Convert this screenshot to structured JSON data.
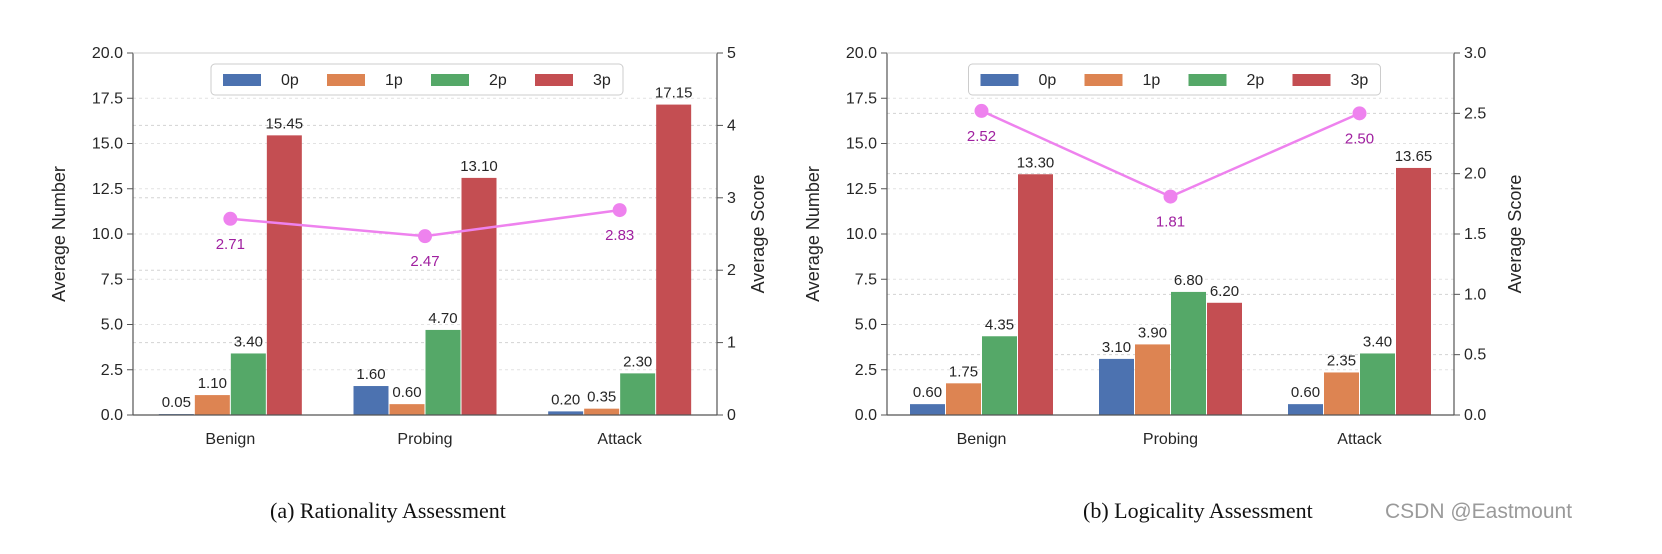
{
  "chart_data": [
    {
      "type": "bar",
      "title": "(a) Rationality Assessment",
      "xlabel": "",
      "ylabel": "Average Number",
      "y2label": "Average Score",
      "ylim": [
        0,
        20
      ],
      "y2lim": [
        0,
        5
      ],
      "yticks": [
        "0.0",
        "2.5",
        "5.0",
        "7.5",
        "10.0",
        "12.5",
        "15.0",
        "17.5",
        "20.0"
      ],
      "y2ticks": [
        "0",
        "1",
        "2",
        "3",
        "4",
        "5"
      ],
      "y2tick_values": [
        0,
        1,
        2,
        3,
        4,
        5
      ],
      "grid": true,
      "legend": "top-center",
      "categories": [
        "Benign",
        "Probing",
        "Attack"
      ],
      "series": [
        {
          "name": "0p",
          "color": "#4c72b0",
          "values": [
            0.05,
            1.6,
            0.2
          ],
          "labels": [
            "0.05",
            "1.60",
            "0.20"
          ]
        },
        {
          "name": "1p",
          "color": "#dd8452",
          "values": [
            1.1,
            0.6,
            0.35
          ],
          "labels": [
            "1.10",
            "0.60",
            "0.35"
          ]
        },
        {
          "name": "2p",
          "color": "#55a868",
          "values": [
            3.4,
            4.7,
            2.3
          ],
          "labels": [
            "3.40",
            "4.70",
            "2.30"
          ]
        },
        {
          "name": "3p",
          "color": "#c44e52",
          "values": [
            15.45,
            13.1,
            17.15
          ],
          "labels": [
            "15.45",
            "13.10",
            "17.15"
          ]
        }
      ],
      "line": {
        "name": "Average Score",
        "color": "#ee82ee",
        "label_color": "#a020a0",
        "values": [
          2.71,
          2.47,
          2.83
        ],
        "labels": [
          "2.71",
          "2.47",
          "2.83"
        ],
        "label_position": "below"
      }
    },
    {
      "type": "bar",
      "title": "(b) Logicality Assessment",
      "xlabel": "",
      "ylabel": "Average Number",
      "y2label": "Average Score",
      "ylim": [
        0,
        20
      ],
      "y2lim": [
        0,
        3
      ],
      "yticks": [
        "0.0",
        "2.5",
        "5.0",
        "7.5",
        "10.0",
        "12.5",
        "15.0",
        "17.5",
        "20.0"
      ],
      "y2ticks": [
        "0.0",
        "0.5",
        "1.0",
        "1.5",
        "2.0",
        "2.5",
        "3.0"
      ],
      "y2tick_values": [
        0,
        0.5,
        1,
        1.5,
        2,
        2.5,
        3
      ],
      "grid": true,
      "legend": "top-center",
      "categories": [
        "Benign",
        "Probing",
        "Attack"
      ],
      "series": [
        {
          "name": "0p",
          "color": "#4c72b0",
          "values": [
            0.6,
            3.1,
            0.6
          ],
          "labels": [
            "0.60",
            "3.10",
            "0.60"
          ]
        },
        {
          "name": "1p",
          "color": "#dd8452",
          "values": [
            1.75,
            3.9,
            2.35
          ],
          "labels": [
            "1.75",
            "3.90",
            "2.35"
          ]
        },
        {
          "name": "2p",
          "color": "#55a868",
          "values": [
            4.35,
            6.8,
            3.4
          ],
          "labels": [
            "4.35",
            "6.80",
            "3.40"
          ]
        },
        {
          "name": "3p",
          "color": "#c44e52",
          "values": [
            13.3,
            6.2,
            13.65
          ],
          "labels": [
            "13.30",
            "6.20",
            "13.65"
          ]
        }
      ],
      "line": {
        "name": "Average Score",
        "color": "#ee82ee",
        "label_color": "#a020a0",
        "values": [
          2.52,
          1.81,
          2.5
        ],
        "labels": [
          "2.52",
          "1.81",
          "2.50"
        ],
        "label_position": "below"
      }
    }
  ],
  "captions": {
    "a": "(a) Rationality Assessment",
    "b": "(b) Logicality Assessment"
  },
  "watermark": "CSDN @Eastmount"
}
